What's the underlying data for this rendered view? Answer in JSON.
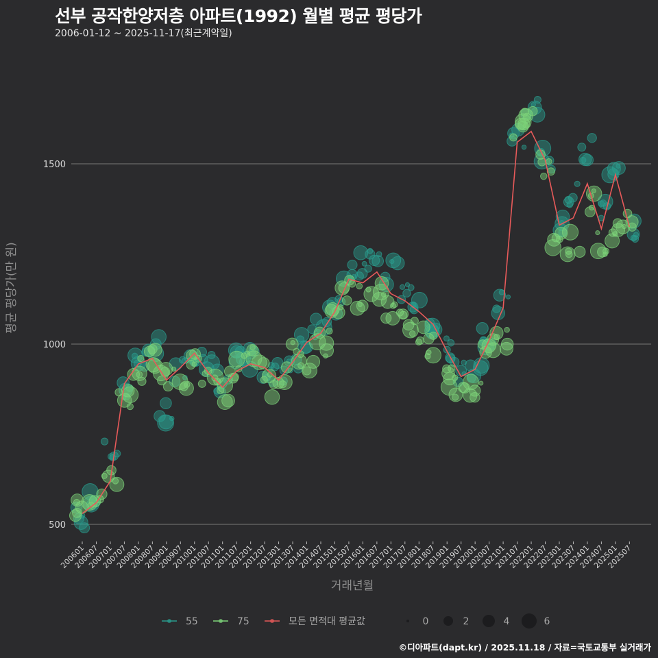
{
  "header": {
    "title": "선부 공작한양저층 아파트(1992) 월별 평균 평당가",
    "subtitle": "2006-01-12 ~ 2025-11-17(최근계약일)"
  },
  "footer": {
    "credit": "©디아파트(dapt.kr) / 2025.11.18 / 자료=국토교통부 실거래가"
  },
  "colors": {
    "background": "#2b2b2d",
    "grid": "#6a6a6a",
    "series_55": "#2a9d8f",
    "series_75": "#7ed47a",
    "average_line": "#e85a5a"
  },
  "legend": {
    "series": [
      {
        "label": "55",
        "color": "#2a9d8f"
      },
      {
        "label": "75",
        "color": "#7ed47a"
      },
      {
        "label": "모든 면적대 평균값",
        "color": "#e85a5a"
      }
    ],
    "size": [
      {
        "label": "0",
        "r": 2
      },
      {
        "label": "2",
        "r": 7
      },
      {
        "label": "4",
        "r": 9
      },
      {
        "label": "6",
        "r": 11
      }
    ]
  },
  "chart_data": {
    "type": "scatter",
    "title": "선부 공작한양저층 아파트(1992) 월별 평균 평당가",
    "subtitle": "2006-01-12 ~ 2025-11-17(최근계약일)",
    "xlabel": "거래년월",
    "ylabel": "평균 평당가(만 원)",
    "ylim": [
      450,
      1720
    ],
    "yticks": [
      500,
      1000,
      1500
    ],
    "grid": true,
    "legend_position": "bottom",
    "xticks": [
      "200601",
      "200607",
      "200701",
      "200707",
      "200801",
      "200807",
      "200901",
      "200907",
      "201001",
      "201007",
      "201101",
      "201107",
      "201201",
      "201207",
      "201301",
      "201307",
      "201401",
      "201407",
      "201501",
      "201507",
      "201601",
      "201607",
      "201701",
      "201707",
      "201801",
      "201807",
      "201901",
      "201907",
      "202001",
      "202007",
      "202101",
      "202107",
      "202201",
      "202207",
      "202301",
      "202307",
      "202401",
      "202407",
      "202501",
      "202507"
    ],
    "series": [
      {
        "name": "모든 면적대 평균값",
        "kind": "line",
        "x": [
          "200601",
          "200607",
          "200701",
          "200707",
          "200801",
          "200807",
          "200901",
          "200907",
          "201001",
          "201007",
          "201101",
          "201107",
          "201201",
          "201207",
          "201301",
          "201307",
          "201401",
          "201407",
          "201501",
          "201507",
          "201601",
          "201607",
          "201701",
          "201707",
          "201801",
          "201807",
          "201901",
          "201907",
          "202001",
          "202007",
          "202101",
          "202107",
          "202201",
          "202207",
          "202301",
          "202307",
          "202401",
          "202407",
          "202501",
          "202507"
        ],
        "values": [
          530,
          560,
          620,
          890,
          945,
          960,
          900,
          935,
          975,
          920,
          880,
          925,
          945,
          935,
          900,
          950,
          1005,
          1030,
          1090,
          1180,
          1170,
          1200,
          1140,
          1120,
          1090,
          1055,
          980,
          910,
          930,
          1010,
          1100,
          1560,
          1590,
          1510,
          1330,
          1350,
          1445,
          1320,
          1470,
          1325
        ]
      },
      {
        "name": "55",
        "kind": "bubble",
        "x": [
          "200601",
          "200607",
          "200701",
          "200707",
          "200801",
          "200807",
          "200901",
          "200907",
          "201001",
          "201007",
          "201101",
          "201107",
          "201201",
          "201207",
          "201301",
          "201307",
          "201401",
          "201407",
          "201501",
          "201507",
          "201601",
          "201607",
          "201701",
          "201707",
          "201801",
          "201807",
          "201901",
          "201907",
          "202001",
          "202007",
          "202101",
          "202107",
          "202201",
          "202207",
          "202301",
          "202307",
          "202401",
          "202407",
          "202501",
          "202507"
        ],
        "values": [
          520,
          560,
          700,
          880,
          950,
          990,
          810,
          930,
          980,
          960,
          900,
          950,
          960,
          930,
          920,
          960,
          1010,
          1040,
          1110,
          1190,
          1220,
          1250,
          1200,
          1150,
          1120,
          1050,
          990,
          930,
          920,
          1010,
          1120,
          1580,
          1650,
          1520,
          1330,
          1410,
          1540,
          1380,
          1460,
          1320
        ]
      },
      {
        "name": "75",
        "kind": "bubble",
        "x": [
          "200601",
          "200607",
          "200701",
          "200707",
          "200801",
          "200807",
          "200901",
          "200907",
          "201001",
          "201007",
          "201101",
          "201107",
          "201201",
          "201207",
          "201301",
          "201307",
          "201401",
          "201407",
          "201501",
          "201507",
          "201601",
          "201607",
          "201701",
          "201707",
          "201801",
          "201807",
          "201901",
          "201907",
          "202001",
          "202007",
          "202101",
          "202107",
          "202201",
          "202207",
          "202301",
          "202307",
          "202401",
          "202407",
          "202501",
          "202507"
        ],
        "values": [
          545,
          580,
          640,
          850,
          930,
          965,
          900,
          910,
          960,
          910,
          870,
          930,
          960,
          920,
          870,
          970,
          960,
          1000,
          1070,
          1150,
          1130,
          1140,
          1090,
          1060,
          1040,
          990,
          900,
          880,
          880,
          980,
          1010,
          1600,
          1620,
          1500,
          1300,
          1280,
          1400,
          1280,
          1320,
          1330
        ]
      }
    ]
  },
  "axes": {
    "x_title": "거래년월",
    "y_title": "평균 평당가(만 원)",
    "y_tick_labels": [
      "500",
      "1000",
      "1500"
    ]
  }
}
